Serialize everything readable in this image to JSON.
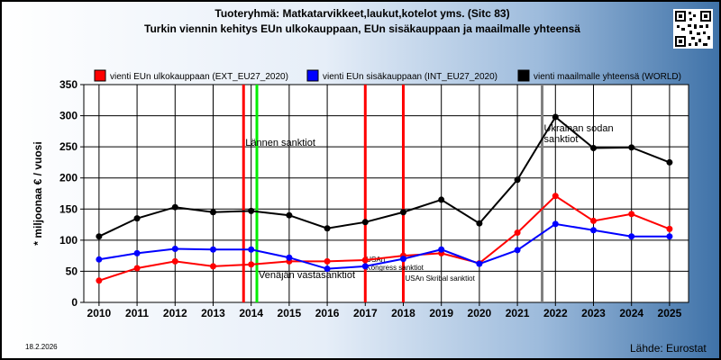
{
  "title_line1": "Tuoteryhmä: Matkatarvikkeet,laukut,kotelot yms. (Sitc 83)",
  "title_line2": "Turkin viennin kehitys EUn ulkokauppaan, EUn sisäkauppaan ja maailmalle yhteensä",
  "date": "18.2.2026",
  "source": "Lähde: Eurostat",
  "qr_icon": "qr-code-icon",
  "chart_data": {
    "type": "line",
    "ylabel": "* miljoonaa € / vuosi",
    "xlabel": "",
    "ylim": [
      0,
      350
    ],
    "yticks": [
      0,
      50,
      100,
      150,
      200,
      250,
      300,
      350
    ],
    "grid": true,
    "legend_position": "top",
    "categories": [
      "2010",
      "2011",
      "2012",
      "2013",
      "2014",
      "2015",
      "2016",
      "2017",
      "2018",
      "2019",
      "2020",
      "2021",
      "2022",
      "2023",
      "2024",
      "2025"
    ],
    "series": [
      {
        "name": "vienti EUn ulkokauppaan (EXT_EU27_2020)",
        "color": "#ff0000",
        "values": [
          35,
          55,
          66,
          58,
          61,
          66,
          66,
          68,
          75,
          79,
          63,
          112,
          171,
          131,
          142,
          118
        ]
      },
      {
        "name": "vienti EUn sisäkauppaan (INT_EU27_2020)",
        "color": "#0000ff",
        "values": [
          69,
          79,
          86,
          85,
          85,
          72,
          54,
          58,
          70,
          85,
          62,
          84,
          126,
          116,
          106,
          106
        ]
      },
      {
        "name": "vienti maailmalle yhteensä (WORLD)",
        "color": "#000000",
        "values": [
          106,
          135,
          153,
          145,
          147,
          140,
          119,
          129,
          145,
          165,
          127,
          197,
          298,
          248,
          249,
          225
        ]
      }
    ],
    "events": [
      {
        "x": 2013.8,
        "color": "#ff0000",
        "label": "Lännen sanktiot"
      },
      {
        "x": 2014.15,
        "color": "#00ee00",
        "label": "Venäjän vastasanktiot"
      },
      {
        "x": 2017.0,
        "color": "#ff0000",
        "label": "USAn Kongress sanktiot"
      },
      {
        "x": 2018.0,
        "color": "#ff0000",
        "label": "USAn Skribal sanktiot"
      },
      {
        "x": 2021.65,
        "color": "#808080",
        "label": "Ukrainan sodan sanktiot"
      }
    ]
  }
}
